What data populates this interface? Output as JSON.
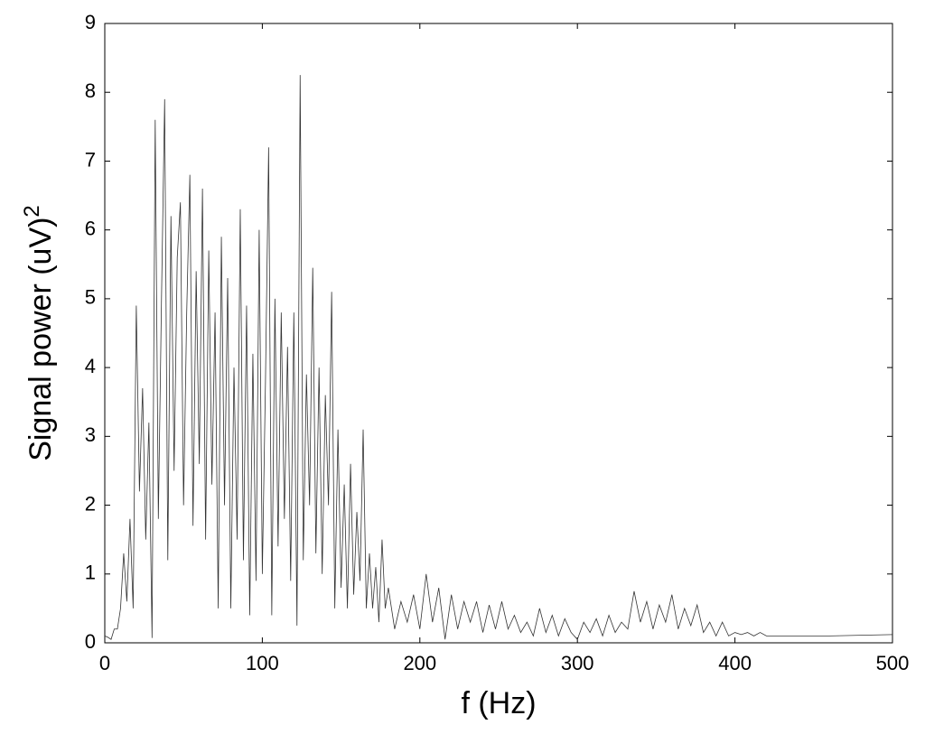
{
  "chart_data": {
    "type": "line",
    "xlabel": "f (Hz)",
    "ylabel": "Signal power (uV)",
    "ylabel_superscript": "2",
    "color": "#333333",
    "xlim": [
      0,
      500
    ],
    "xticks": [
      0,
      100,
      200,
      300,
      400,
      500
    ],
    "ylim": [
      0,
      9
    ],
    "yticks": [
      0,
      1,
      2,
      3,
      4,
      5,
      6,
      7,
      8,
      9
    ],
    "grid": false,
    "x": [
      0,
      2,
      4,
      6,
      8,
      10,
      12,
      14,
      16,
      18,
      20,
      22,
      24,
      26,
      28,
      30,
      32,
      34,
      36,
      38,
      40,
      42,
      44,
      46,
      48,
      50,
      52,
      54,
      56,
      58,
      60,
      62,
      64,
      66,
      68,
      70,
      72,
      74,
      76,
      78,
      80,
      82,
      84,
      86,
      88,
      90,
      92,
      94,
      96,
      98,
      100,
      102,
      104,
      106,
      108,
      110,
      112,
      114,
      116,
      118,
      120,
      122,
      124,
      126,
      128,
      130,
      132,
      134,
      136,
      138,
      140,
      142,
      144,
      146,
      148,
      150,
      152,
      154,
      156,
      158,
      160,
      162,
      164,
      166,
      168,
      170,
      172,
      174,
      176,
      178,
      180,
      184,
      188,
      192,
      196,
      200,
      204,
      208,
      212,
      216,
      220,
      224,
      228,
      232,
      236,
      240,
      244,
      248,
      252,
      256,
      260,
      264,
      268,
      272,
      276,
      280,
      284,
      288,
      292,
      296,
      300,
      304,
      308,
      312,
      316,
      320,
      324,
      328,
      332,
      336,
      340,
      344,
      348,
      352,
      356,
      360,
      364,
      368,
      372,
      376,
      380,
      384,
      388,
      392,
      396,
      400,
      404,
      408,
      412,
      416,
      420,
      440,
      460,
      500
    ],
    "values": [
      0.1,
      0.08,
      0.05,
      0.2,
      0.2,
      0.5,
      1.3,
      0.6,
      1.8,
      0.5,
      4.9,
      2.2,
      3.7,
      1.5,
      3.2,
      0.07,
      7.6,
      1.8,
      5.0,
      7.9,
      1.2,
      6.2,
      2.5,
      5.6,
      6.4,
      2.0,
      4.8,
      6.8,
      1.7,
      5.4,
      2.6,
      6.6,
      1.5,
      5.7,
      2.3,
      4.8,
      0.5,
      5.9,
      2.0,
      5.3,
      0.5,
      4.0,
      1.5,
      6.3,
      1.2,
      4.9,
      0.4,
      4.2,
      0.9,
      6.0,
      1.0,
      3.8,
      7.2,
      0.4,
      5.0,
      1.4,
      4.8,
      1.8,
      4.3,
      0.9,
      4.8,
      0.25,
      8.25,
      1.2,
      3.9,
      2.0,
      5.45,
      1.3,
      4.0,
      1.0,
      3.6,
      2.0,
      5.1,
      0.5,
      3.1,
      0.8,
      2.3,
      0.5,
      2.6,
      0.7,
      1.9,
      0.9,
      3.1,
      0.5,
      1.3,
      0.5,
      1.1,
      0.3,
      1.5,
      0.5,
      0.8,
      0.2,
      0.6,
      0.3,
      0.7,
      0.2,
      1.0,
      0.3,
      0.8,
      0.05,
      0.7,
      0.2,
      0.6,
      0.3,
      0.6,
      0.15,
      0.55,
      0.2,
      0.6,
      0.2,
      0.4,
      0.15,
      0.3,
      0.1,
      0.5,
      0.15,
      0.4,
      0.1,
      0.35,
      0.15,
      0.05,
      0.3,
      0.15,
      0.35,
      0.1,
      0.4,
      0.15,
      0.3,
      0.2,
      0.75,
      0.3,
      0.6,
      0.2,
      0.55,
      0.3,
      0.7,
      0.2,
      0.5,
      0.25,
      0.55,
      0.15,
      0.3,
      0.1,
      0.3,
      0.1,
      0.15,
      0.12,
      0.15,
      0.1,
      0.15,
      0.1,
      0.1,
      0.1,
      0.12
    ]
  }
}
